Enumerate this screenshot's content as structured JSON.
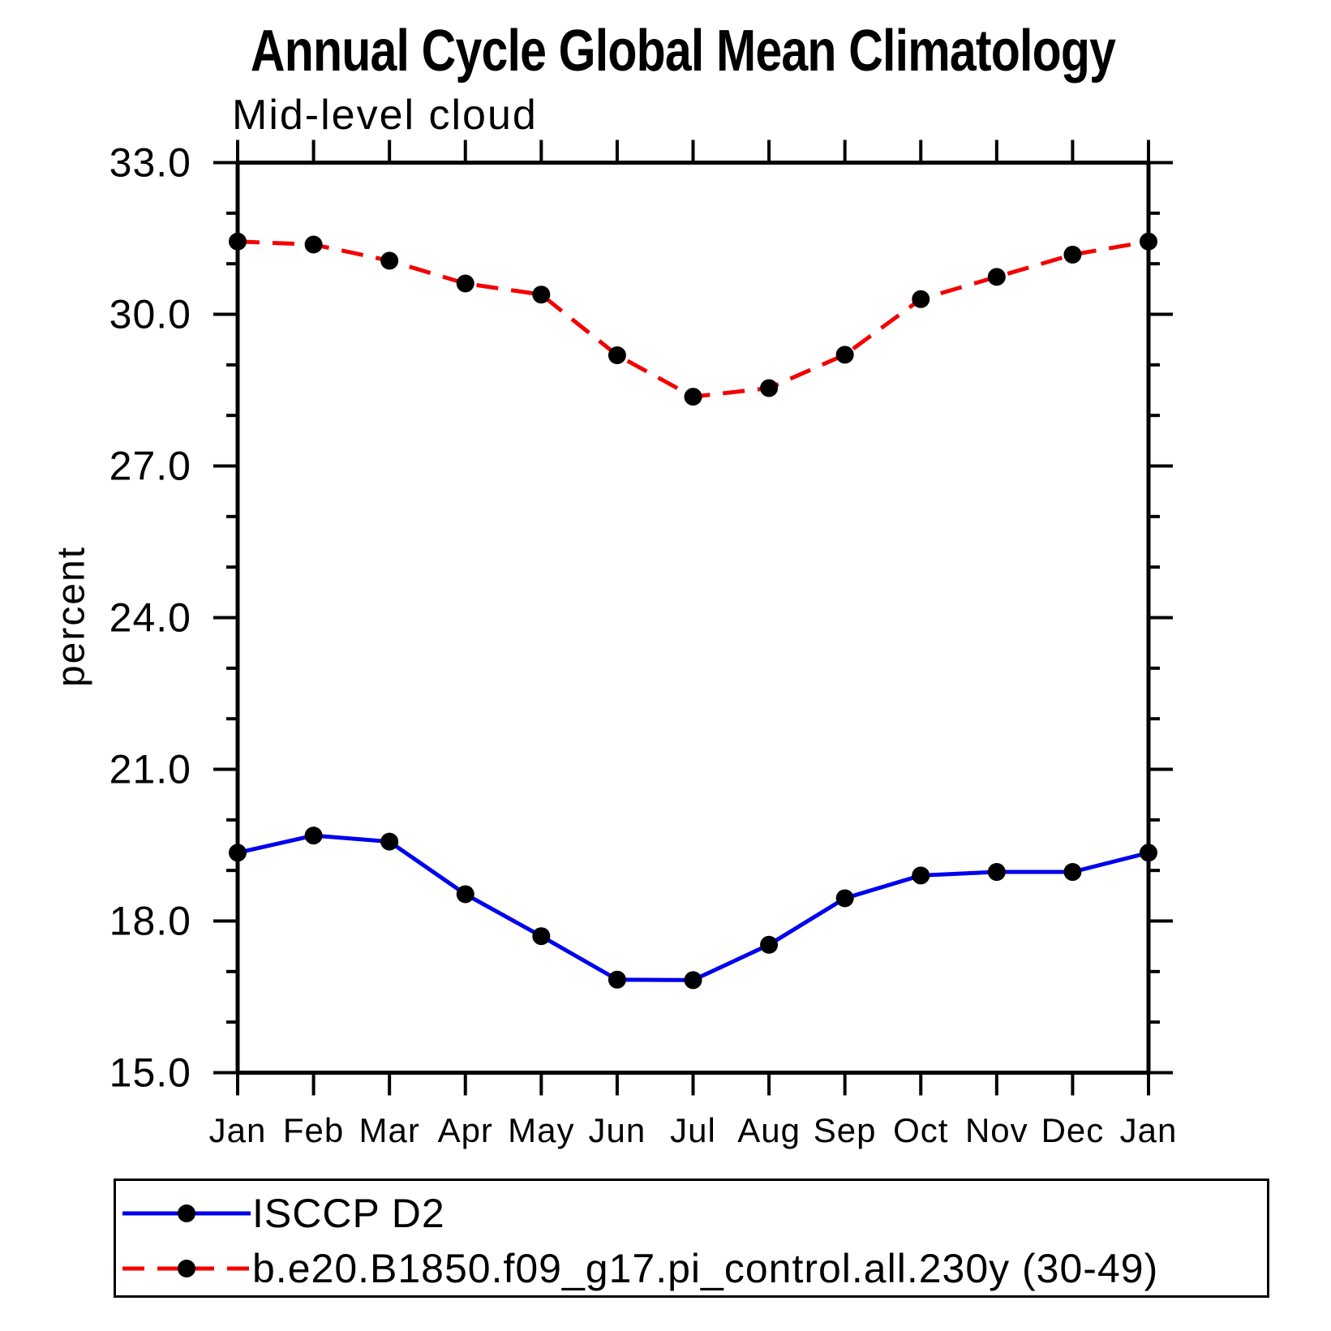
{
  "page": {
    "background": "#ffffff"
  },
  "chart_data": {
    "type": "line",
    "title": "Annual Cycle Global Mean Climatology",
    "subtitle": "Mid-level cloud",
    "ylabel": "percent",
    "categories": [
      "Jan",
      "Feb",
      "Mar",
      "Apr",
      "May",
      "Jun",
      "Jul",
      "Aug",
      "Sep",
      "Oct",
      "Nov",
      "Dec",
      "Jan"
    ],
    "ylim": [
      15.0,
      33.0
    ],
    "y_major_step": 3,
    "y_minor_step": 1,
    "y_tick_labels": [
      "15.0",
      "18.0",
      "21.0",
      "24.0",
      "27.0",
      "30.0",
      "33.0"
    ],
    "grid": false,
    "legend_position": "bottom-left",
    "axis_color": "#000000",
    "series": [
      {
        "name": "ISCCP D2",
        "color": "#0000ee",
        "style": "solid",
        "marker": "circle",
        "marker_color": "#000000",
        "values": [
          19.35,
          19.69,
          19.57,
          18.53,
          17.7,
          16.84,
          16.83,
          17.53,
          18.45,
          18.9,
          18.97,
          18.97,
          19.35
        ]
      },
      {
        "name": "b.e20.B1850.f09_g17.pi_control.all.230y (30-49)",
        "color": "#f40000",
        "style": "dashed",
        "marker": "circle",
        "marker_color": "#000000",
        "values": [
          31.44,
          31.38,
          31.06,
          30.61,
          30.39,
          29.19,
          28.37,
          28.54,
          29.2,
          30.3,
          30.74,
          31.18,
          31.44
        ]
      }
    ]
  }
}
